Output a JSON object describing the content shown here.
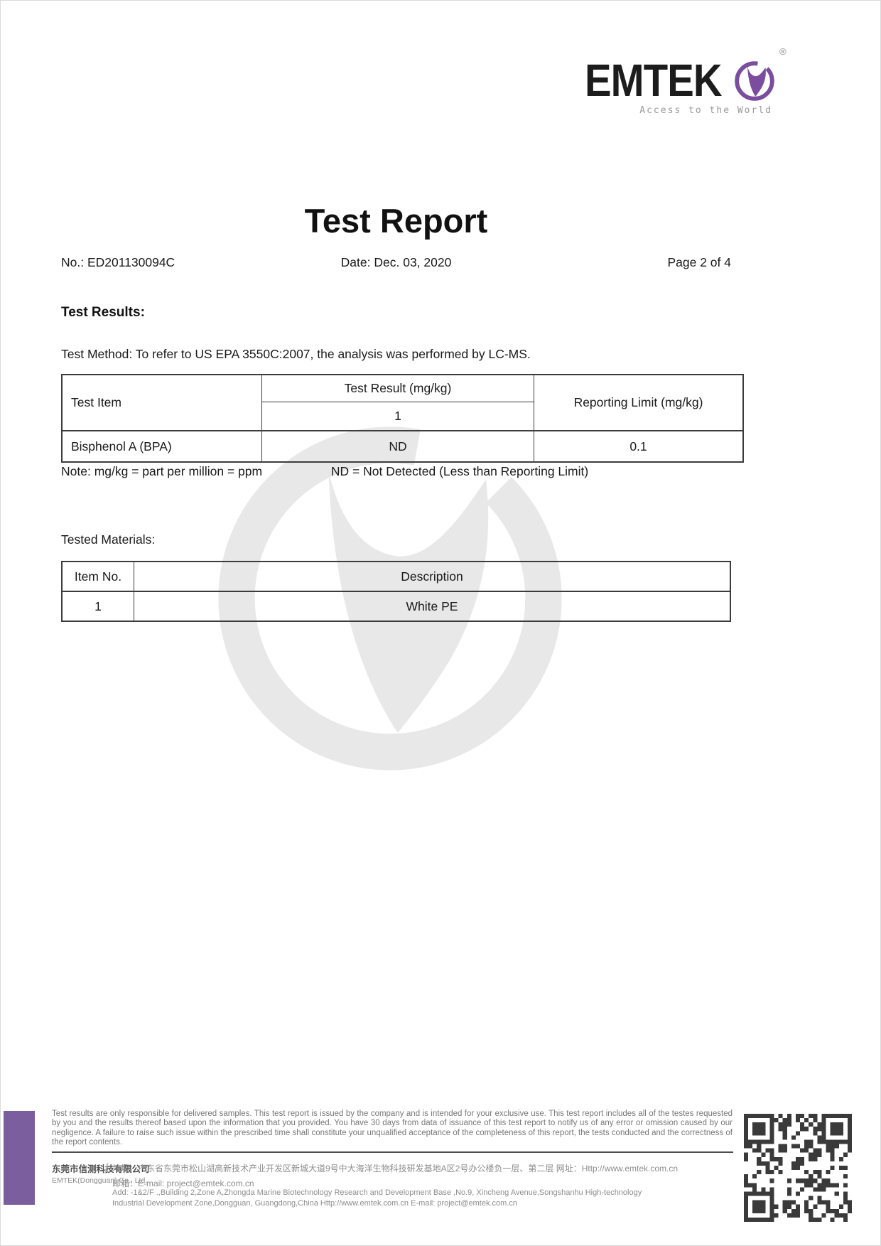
{
  "logo": {
    "brand": "EMTEK",
    "registered": "®",
    "tagline": "Access to the World"
  },
  "header": {
    "title": "Test Report",
    "report_no": "No.: ED201130094C",
    "date": "Date: Dec. 03, 2020",
    "page": "Page 2 of 4"
  },
  "test_results": {
    "heading": "Test Results:",
    "method": "Test Method: To refer to US EPA 3550C:2007, the analysis was performed by LC-MS.",
    "table": {
      "headers": {
        "item": "Test Item",
        "result": "Test Result (mg/kg)",
        "sample": "1",
        "limit": "Reporting Limit (mg/kg)"
      },
      "rows": [
        {
          "item": "Bisphenol A (BPA)",
          "result": "ND",
          "limit": "0.1"
        }
      ]
    },
    "note_left": "Note: mg/kg = part per million = ppm",
    "note_right": "ND = Not Detected (Less than Reporting Limit)"
  },
  "tested_materials": {
    "heading": "Tested Materials:",
    "table": {
      "headers": {
        "item_no": "Item No.",
        "description": "Description"
      },
      "rows": [
        {
          "item_no": "1",
          "description": "White PE"
        }
      ]
    }
  },
  "footer": {
    "disclaimer": "Test results are only responsible for delivered samples. This test report is issued by the company and is intended for your exclusive use. This test report includes all of the testes requested by you and the results thereof based upon the information that you provided. You have 30 days from data of issuance of this test report to notify us of any error or omission caused by our negligence. A failure to raise such issue within the prescribed time shall constitute your unqualified acceptance of the completeness of this report, the tests conducted and the correctness of the report contents.",
    "company_cn": "东莞市信测科技有限公司",
    "company_en": "EMTEK(Dongguan) Co., Ltd.",
    "slash": "/",
    "addr_cn": "地址：广东省东莞市松山湖高新技术产业开发区新城大道9号中大海洋生物科技研发基地A区2号办公楼负一层、第二层  网址：Http://www.emtek.com.cn",
    "email_cn": "邮箱：E-mail: project@emtek.com.cn",
    "addr_en1": "Add: -1&2/F .,Building 2,Zone A,Zhongda Marine Biotechnology Research and Development Base ,No.9,  Xincheng Avenue,Songshanhu High-technology",
    "addr_en2": "Industrial Development Zone,Dongguan, Guangdong,China    Http://www.emtek.com.cn   E-mail: project@emtek.com.cn"
  },
  "colors": {
    "brand_purple": "#7b4d9e",
    "footer_bar_purple": "#7b5e9e",
    "watermark_gray": "#e8e8e8",
    "qr_color": "#3a3a3a"
  }
}
